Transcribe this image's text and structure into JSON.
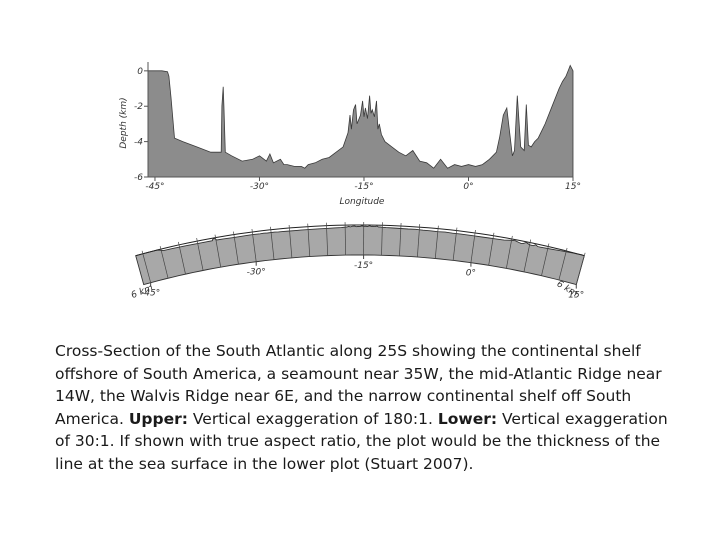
{
  "chart_data": [
    {
      "type": "area",
      "panel": "upper",
      "xlabel": "Longitude",
      "ylabel": "Depth (km)",
      "xlim": [
        -46,
        15
      ],
      "ylim": [
        -6,
        0.5
      ],
      "x_ticks": [
        -45,
        -30,
        -15,
        0,
        15
      ],
      "x_tick_labels": [
        "-45°",
        "-30°",
        "-15°",
        "0°",
        "15°"
      ],
      "y_ticks": [
        0,
        -2,
        -4,
        -6
      ],
      "y_tick_labels": [
        "0",
        "-2",
        "-4",
        "-6"
      ],
      "series": [
        {
          "x": [
            -46,
            -45.6,
            -44,
            -43.2,
            -43,
            -42.7,
            -42.2,
            -41,
            -39,
            -37,
            -35.5,
            -35.4,
            -35.2,
            -35.1,
            -34.9,
            -34,
            -32.5,
            -31,
            -30,
            -29,
            -28.5,
            -28,
            -27,
            -26.5,
            -26,
            -25,
            -24,
            -23.5,
            -23,
            -22,
            -21,
            -20,
            -19,
            -18,
            -17.3,
            -17,
            -16.8,
            -16.5,
            -16.2,
            -16,
            -15.8,
            -15.5,
            -15.2,
            -15,
            -14.8,
            -14.5,
            -14.2,
            -14,
            -13.8,
            -13.5,
            -13.2,
            -13,
            -12.8,
            -12.5,
            -12,
            -11,
            -10,
            -9,
            -8,
            -7,
            -6,
            -5,
            -4,
            -3,
            -2,
            -1,
            0,
            1,
            2,
            3,
            4,
            4.5,
            5,
            5.5,
            6,
            6.3,
            6.6,
            7,
            7.5,
            8,
            8.3,
            8.6,
            9,
            9.5,
            10,
            11,
            12,
            13,
            13.5,
            14,
            14.2,
            14.4,
            14.6,
            15
          ],
          "y": [
            0,
            0,
            0,
            -0.05,
            -0.3,
            -1.5,
            -3.8,
            -4.0,
            -4.3,
            -4.6,
            -4.6,
            -2.0,
            -0.9,
            -2.0,
            -4.6,
            -4.8,
            -5.1,
            -5.0,
            -4.8,
            -5.1,
            -4.7,
            -5.2,
            -5.0,
            -5.3,
            -5.3,
            -5.4,
            -5.4,
            -5.5,
            -5.3,
            -5.2,
            -5.0,
            -4.9,
            -4.6,
            -4.3,
            -3.5,
            -2.5,
            -3.3,
            -2.2,
            -1.9,
            -3.0,
            -2.8,
            -2.5,
            -1.7,
            -2.6,
            -2.1,
            -2.7,
            -1.4,
            -2.4,
            -2.2,
            -2.6,
            -1.7,
            -3.3,
            -3.0,
            -3.6,
            -4.0,
            -4.3,
            -4.6,
            -4.8,
            -4.5,
            -5.1,
            -5.2,
            -5.5,
            -5.0,
            -5.5,
            -5.3,
            -5.4,
            -5.3,
            -5.4,
            -5.3,
            -5.0,
            -4.6,
            -3.7,
            -2.5,
            -2.1,
            -3.8,
            -4.8,
            -4.5,
            -1.4,
            -4.3,
            -4.5,
            -1.9,
            -4.2,
            -4.3,
            -4.0,
            -3.8,
            -3.0,
            -2.0,
            -1.0,
            -0.6,
            -0.3,
            -0.1,
            0.1,
            0.3,
            0
          ]
        }
      ]
    },
    {
      "type": "area",
      "panel": "lower",
      "xlabel": "",
      "ylabel": "",
      "xlim": [
        -46,
        15
      ],
      "x_ticks": [
        -45,
        -30,
        -15,
        0,
        15
      ],
      "x_tick_labels": [
        "-45°",
        "-30°",
        "-15°",
        "0°",
        "15°"
      ],
      "side_labels": [
        "6 km",
        "6 km"
      ]
    }
  ],
  "caption": {
    "intro": "Cross-Section of the South Atlantic along 25S showing the continental shelf offshore of South America, a seamount near 35W, the mid-Atlantic Ridge near 14W, the Walvis Ridge near 6E, and the narrow continental shelf off South America.",
    "upper_label": "Upper:",
    "upper_text": "Vertical exaggeration of 180:1.",
    "lower_label": "Lower:",
    "lower_text": "Vertical exaggeration of 30:1. If shown with true aspect ratio, the plot would be the thickness of the line at the sea surface in the lower plot (Stuart 2007)."
  }
}
